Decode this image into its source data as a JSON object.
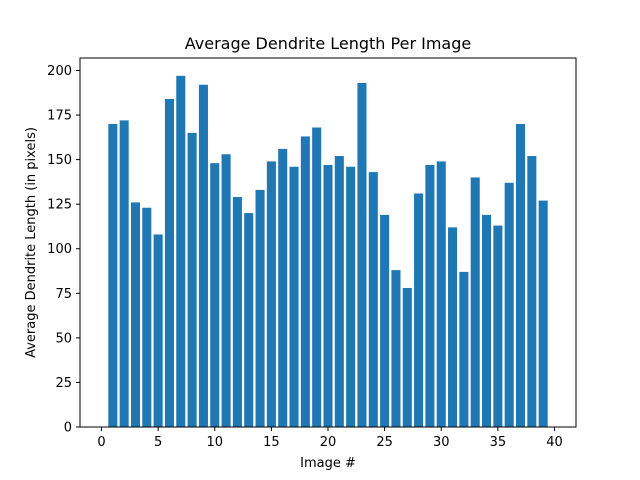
{
  "chart_data": {
    "type": "bar",
    "title": "Average Dendrite Length Per Image",
    "xlabel": "Image #",
    "ylabel": "Average Dendrite Length (in pixels)",
    "x": [
      1,
      2,
      3,
      4,
      5,
      6,
      7,
      8,
      9,
      10,
      11,
      12,
      13,
      14,
      15,
      16,
      17,
      18,
      19,
      20,
      21,
      22,
      23,
      24,
      25,
      26,
      27,
      28,
      29,
      30,
      31,
      32,
      33,
      34,
      35,
      36,
      37,
      38,
      39
    ],
    "values": [
      170,
      172,
      126,
      123,
      108,
      184,
      197,
      165,
      192,
      148,
      153,
      129,
      120,
      133,
      149,
      156,
      146,
      163,
      168,
      147,
      152,
      146,
      193,
      143,
      119,
      88,
      78,
      131,
      147,
      149,
      112,
      87,
      140,
      119,
      113,
      137,
      170,
      152,
      127
    ],
    "xlim": [
      -1.9,
      41.9
    ],
    "ylim": [
      0,
      207
    ],
    "xticks": [
      0,
      5,
      10,
      15,
      20,
      25,
      30,
      35,
      40
    ],
    "yticks": [
      0,
      25,
      50,
      75,
      100,
      125,
      150,
      175,
      200
    ],
    "bar_width": 0.8,
    "bar_color": "#1f77b4",
    "grid": false
  }
}
